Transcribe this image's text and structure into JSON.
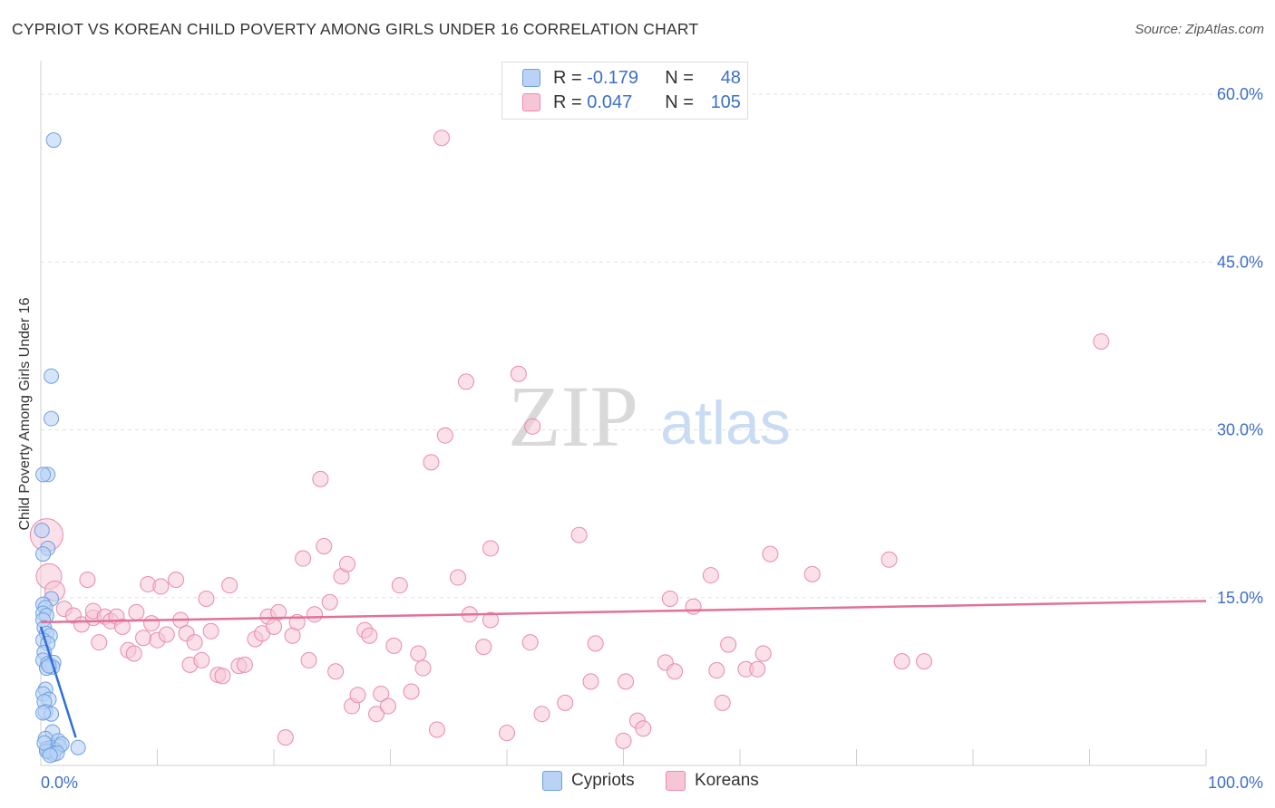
{
  "title": "CYPRIOT VS KOREAN CHILD POVERTY AMONG GIRLS UNDER 16 CORRELATION CHART",
  "source": "Source: ZipAtlas.com",
  "watermark": {
    "zip": "ZIP",
    "atlas": "atlas"
  },
  "colors": {
    "blue": "#6f9fe0",
    "blue_fill": "#b9d2f5",
    "pink": "#ea8aab",
    "pink_fill": "#f6c6d6",
    "blue_line": "#2e6fd8",
    "pink_line": "#e2709a",
    "axis_text": "#3d6fc7"
  },
  "legend": {
    "rows": [
      {
        "r_label": "R =",
        "r_value": "-0.179",
        "n_label": "N =",
        "n_value": "48"
      },
      {
        "r_label": "R =",
        "r_value": "0.047",
        "n_label": "N =",
        "n_value": "105"
      }
    ]
  },
  "bottom_legend": {
    "cypriots": "Cypriots",
    "koreans": "Koreans"
  },
  "chart_data": {
    "type": "scatter",
    "title": "CYPRIOT VS KOREAN CHILD POVERTY AMONG GIRLS UNDER 16 CORRELATION CHART",
    "xlabel": "",
    "ylabel": "Child Poverty Among Girls Under 16",
    "xlim": [
      0,
      100
    ],
    "ylim": [
      0,
      63
    ],
    "x_tick_labels": [
      "0.0%",
      "100.0%"
    ],
    "y_ticks": [
      15,
      30,
      45,
      60
    ],
    "y_tick_labels": [
      "15.0%",
      "30.0%",
      "45.0%",
      "60.0%"
    ],
    "series": [
      {
        "name": "Cypriots",
        "R": -0.179,
        "N": 48,
        "trend": {
          "x0": 0,
          "y0": 12.4,
          "x1": 3.0,
          "y1": 2.5
        },
        "points": [
          [
            1.1,
            55.9
          ],
          [
            0.9,
            34.8
          ],
          [
            0.9,
            31.0
          ],
          [
            0.6,
            26.0
          ],
          [
            0.2,
            26.0
          ],
          [
            0.1,
            21.0
          ],
          [
            0.6,
            19.4
          ],
          [
            0.2,
            18.9
          ],
          [
            0.9,
            14.9
          ],
          [
            0.2,
            14.4
          ],
          [
            0.4,
            14.1
          ],
          [
            0.2,
            13.6
          ],
          [
            0.5,
            13.4
          ],
          [
            0.2,
            13.0
          ],
          [
            0.3,
            12.3
          ],
          [
            0.5,
            11.8
          ],
          [
            0.8,
            11.6
          ],
          [
            0.2,
            11.2
          ],
          [
            0.6,
            10.9
          ],
          [
            0.3,
            10.1
          ],
          [
            0.2,
            9.4
          ],
          [
            0.6,
            9.1
          ],
          [
            1.1,
            9.2
          ],
          [
            1.0,
            8.8
          ],
          [
            0.5,
            8.7
          ],
          [
            0.7,
            8.9
          ],
          [
            0.4,
            6.8
          ],
          [
            0.2,
            6.4
          ],
          [
            0.7,
            5.9
          ],
          [
            0.3,
            5.7
          ],
          [
            0.4,
            4.8
          ],
          [
            0.9,
            4.6
          ],
          [
            0.2,
            4.7
          ],
          [
            1.0,
            3.0
          ],
          [
            0.4,
            2.4
          ],
          [
            1.5,
            2.2
          ],
          [
            1.6,
            1.7
          ],
          [
            0.9,
            1.6
          ],
          [
            0.5,
            1.5
          ],
          [
            1.2,
            1.4
          ],
          [
            1.8,
            1.9
          ],
          [
            0.7,
            1.2
          ],
          [
            1.1,
            1.0
          ],
          [
            3.2,
            1.6
          ],
          [
            0.5,
            1.3
          ],
          [
            0.3,
            2.0
          ],
          [
            1.4,
            1.1
          ],
          [
            0.8,
            0.9
          ]
        ]
      },
      {
        "name": "Koreans",
        "R": 0.047,
        "N": 105,
        "trend": {
          "x0": 0,
          "y0": 12.8,
          "x1": 100,
          "y1": 14.7
        },
        "points": [
          [
            0.5,
            20.6
          ],
          [
            0.7,
            16.9
          ],
          [
            1.2,
            15.6
          ],
          [
            2.0,
            14.0
          ],
          [
            2.8,
            13.4
          ],
          [
            3.5,
            12.6
          ],
          [
            4.0,
            16.6
          ],
          [
            4.5,
            13.2
          ],
          [
            4.5,
            13.8
          ],
          [
            5.0,
            11.0
          ],
          [
            5.5,
            13.3
          ],
          [
            6.0,
            12.9
          ],
          [
            6.5,
            13.3
          ],
          [
            7.0,
            12.4
          ],
          [
            7.5,
            10.3
          ],
          [
            8.0,
            10.0
          ],
          [
            8.2,
            13.7
          ],
          [
            8.8,
            11.4
          ],
          [
            9.2,
            16.2
          ],
          [
            9.5,
            12.7
          ],
          [
            10.0,
            11.2
          ],
          [
            10.3,
            16.0
          ],
          [
            10.8,
            11.7
          ],
          [
            11.6,
            16.6
          ],
          [
            12.0,
            13.0
          ],
          [
            12.5,
            11.8
          ],
          [
            12.8,
            9.0
          ],
          [
            13.2,
            11.0
          ],
          [
            13.8,
            9.4
          ],
          [
            14.2,
            14.9
          ],
          [
            14.6,
            12.0
          ],
          [
            15.2,
            8.1
          ],
          [
            15.6,
            8.0
          ],
          [
            16.2,
            16.1
          ],
          [
            17.0,
            8.9
          ],
          [
            17.5,
            9.0
          ],
          [
            18.4,
            11.3
          ],
          [
            19.0,
            11.8
          ],
          [
            19.5,
            13.3
          ],
          [
            20.0,
            12.4
          ],
          [
            20.4,
            13.7
          ],
          [
            21.0,
            2.5
          ],
          [
            21.6,
            11.6
          ],
          [
            22.0,
            12.8
          ],
          [
            22.5,
            18.5
          ],
          [
            23.0,
            9.4
          ],
          [
            23.5,
            13.5
          ],
          [
            24.0,
            25.6
          ],
          [
            24.3,
            19.6
          ],
          [
            24.8,
            14.6
          ],
          [
            25.3,
            8.4
          ],
          [
            25.8,
            16.9
          ],
          [
            26.3,
            18.0
          ],
          [
            26.7,
            5.3
          ],
          [
            27.2,
            6.3
          ],
          [
            27.8,
            12.1
          ],
          [
            28.2,
            11.6
          ],
          [
            28.8,
            4.6
          ],
          [
            29.2,
            6.4
          ],
          [
            29.8,
            5.3
          ],
          [
            30.3,
            10.7
          ],
          [
            30.8,
            16.1
          ],
          [
            31.8,
            6.6
          ],
          [
            32.4,
            10.0
          ],
          [
            32.8,
            8.7
          ],
          [
            33.5,
            27.1
          ],
          [
            34.0,
            3.2
          ],
          [
            34.4,
            56.1
          ],
          [
            34.7,
            29.5
          ],
          [
            35.8,
            16.8
          ],
          [
            36.5,
            34.3
          ],
          [
            36.8,
            13.5
          ],
          [
            38.0,
            10.6
          ],
          [
            38.6,
            19.4
          ],
          [
            38.6,
            13.0
          ],
          [
            40.0,
            2.9
          ],
          [
            41.0,
            35.0
          ],
          [
            42.0,
            11.0
          ],
          [
            42.2,
            30.3
          ],
          [
            43.0,
            4.6
          ],
          [
            45.0,
            5.6
          ],
          [
            46.2,
            20.6
          ],
          [
            47.2,
            7.5
          ],
          [
            47.6,
            10.9
          ],
          [
            50.0,
            2.2
          ],
          [
            50.2,
            7.5
          ],
          [
            51.2,
            4.0
          ],
          [
            51.7,
            3.3
          ],
          [
            53.6,
            9.2
          ],
          [
            54.0,
            14.9
          ],
          [
            54.4,
            8.4
          ],
          [
            56.0,
            14.2
          ],
          [
            57.5,
            17.0
          ],
          [
            58.0,
            8.5
          ],
          [
            58.5,
            5.6
          ],
          [
            59.0,
            10.8
          ],
          [
            60.5,
            8.6
          ],
          [
            61.5,
            8.6
          ],
          [
            62.0,
            10.0
          ],
          [
            62.6,
            18.9
          ],
          [
            66.2,
            17.1
          ],
          [
            72.8,
            18.4
          ],
          [
            91.0,
            37.9
          ],
          [
            73.9,
            9.3
          ],
          [
            75.8,
            9.3
          ]
        ]
      }
    ]
  }
}
